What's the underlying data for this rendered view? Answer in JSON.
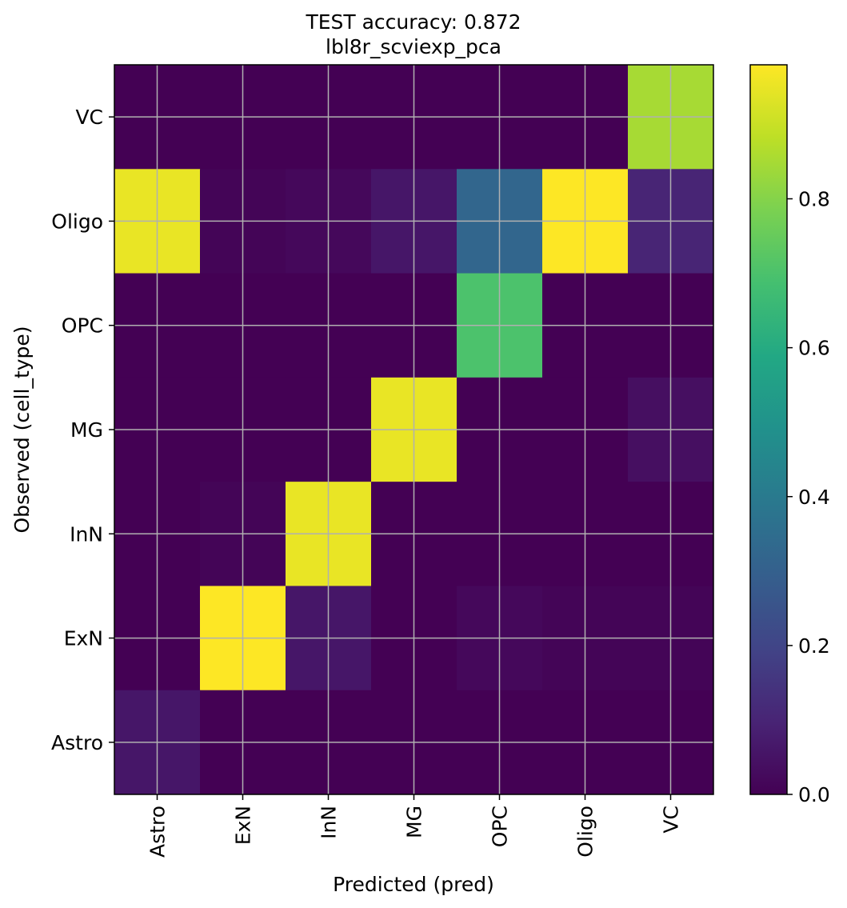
{
  "chart_data": {
    "type": "heatmap",
    "title": "TEST accuracy: 0.872",
    "subtitle": "lbl8r_scviexp_pca",
    "xlabel": "Predicted (pred)",
    "ylabel": "Observed (cell_type)",
    "x_categories": [
      "Astro",
      "ExN",
      "InN",
      "MG",
      "OPC",
      "Oligo",
      "VC"
    ],
    "y_categories_top_to_bottom": [
      "VC",
      "Oligo",
      "OPC",
      "MG",
      "InN",
      "ExN",
      "Astro"
    ],
    "values_top_to_bottom": [
      [
        0.0,
        0.0,
        0.0,
        0.0,
        0.0,
        0.0,
        0.85
      ],
      [
        0.95,
        0.01,
        0.02,
        0.06,
        0.32,
        0.98,
        0.1
      ],
      [
        0.0,
        0.0,
        0.0,
        0.0,
        0.7,
        0.0,
        0.0
      ],
      [
        0.0,
        0.0,
        0.0,
        0.95,
        0.0,
        0.0,
        0.04
      ],
      [
        0.0,
        0.01,
        0.95,
        0.0,
        0.0,
        0.0,
        0.0
      ],
      [
        0.0,
        0.98,
        0.06,
        0.0,
        0.02,
        0.01,
        0.01
      ],
      [
        0.06,
        0.0,
        0.0,
        0.0,
        0.0,
        0.0,
        0.0
      ]
    ],
    "colormap": "viridis",
    "color_range": [
      0.0,
      0.98
    ],
    "colorbar_ticks": [
      "0.0",
      "0.2",
      "0.4",
      "0.6",
      "0.8"
    ],
    "grid": true
  }
}
